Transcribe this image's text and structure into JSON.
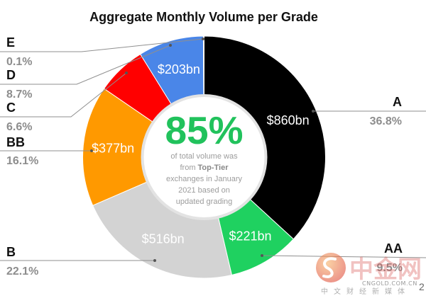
{
  "chart_data": {
    "type": "pie",
    "variant": "donut",
    "title": "Aggregate Monthly Volume per Grade",
    "categories": [
      "A",
      "AA",
      "B",
      "BB",
      "C",
      "D",
      "E"
    ],
    "percent": [
      36.8,
      9.5,
      22.1,
      16.1,
      6.6,
      8.7,
      0.1
    ],
    "value_labels": [
      "$860bn",
      "$221bn",
      "$516bn",
      "$377bn",
      "",
      "$203bn",
      ""
    ],
    "colors": [
      "#000000",
      "#1fd160",
      "#d3d3d3",
      "#ff9900",
      "#ff0000",
      "#4a86e8",
      "#d9d9d9"
    ],
    "legend": "none",
    "center_annotation": {
      "headline": "85%",
      "color": "#21c25c",
      "caption": [
        "of total volume was",
        "from",
        "Top-Tier",
        "exchanges in January",
        "2021 based on",
        "updated grading"
      ]
    }
  },
  "watermark": {
    "brand": "中金网",
    "domain": "CNGOLD.COM.CN",
    "tagline": "中文财经新媒体"
  },
  "page_fragment": "2"
}
